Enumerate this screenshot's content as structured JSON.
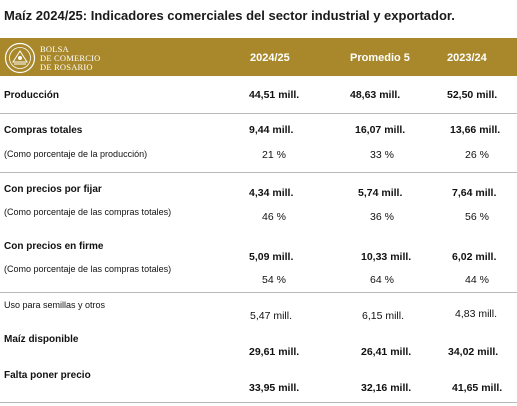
{
  "title": "Maíz 2024/25: Indicadores comerciales del sector industrial y exportador.",
  "logo": {
    "line1": "BOLSA",
    "line2": "DE COMERCIO",
    "line3": "DE ROSARIO"
  },
  "columns": [
    "2024/25",
    "Promedio 5",
    "2023/24"
  ],
  "rows": [
    {
      "label": "Producción",
      "values": [
        "44,51 mill.",
        "48,63 mill.",
        "52,50 mill."
      ]
    },
    {
      "label": "Compras totales",
      "values": [
        "9,44 mill.",
        "16,07 mill.",
        "13,66 mill."
      ]
    },
    {
      "label": "(Como porcentaje de la producción)",
      "values": [
        "21 %",
        "33 %",
        "26 %"
      ]
    },
    {
      "label": "Con precios por fijar",
      "values": [
        "4,34 mill.",
        "5,74 mill.",
        "7,64 mill."
      ]
    },
    {
      "label": "(Como porcentaje de las compras totales)",
      "values": [
        "46 %",
        "36 %",
        "56 %"
      ]
    },
    {
      "label": "Con precios en firme",
      "values": [
        "5,09 mill.",
        "10,33 mill.",
        "6,02 mill."
      ]
    },
    {
      "label": "(Como porcentaje de las compras totales)",
      "values": [
        "54 %",
        "64 %",
        "44 %"
      ]
    },
    {
      "label": "Uso para semillas y otros",
      "values": [
        "5,47 mill.",
        "6,15 mill.",
        "4,83 mill."
      ]
    },
    {
      "label": "Maíz disponible",
      "values": [
        "29,61 mill.",
        "26,41 mill.",
        "34,02 mill."
      ]
    },
    {
      "label": "Falta poner precio",
      "values": [
        "33,95 mill.",
        "32,16 mill.",
        "41,65 mill."
      ]
    }
  ]
}
